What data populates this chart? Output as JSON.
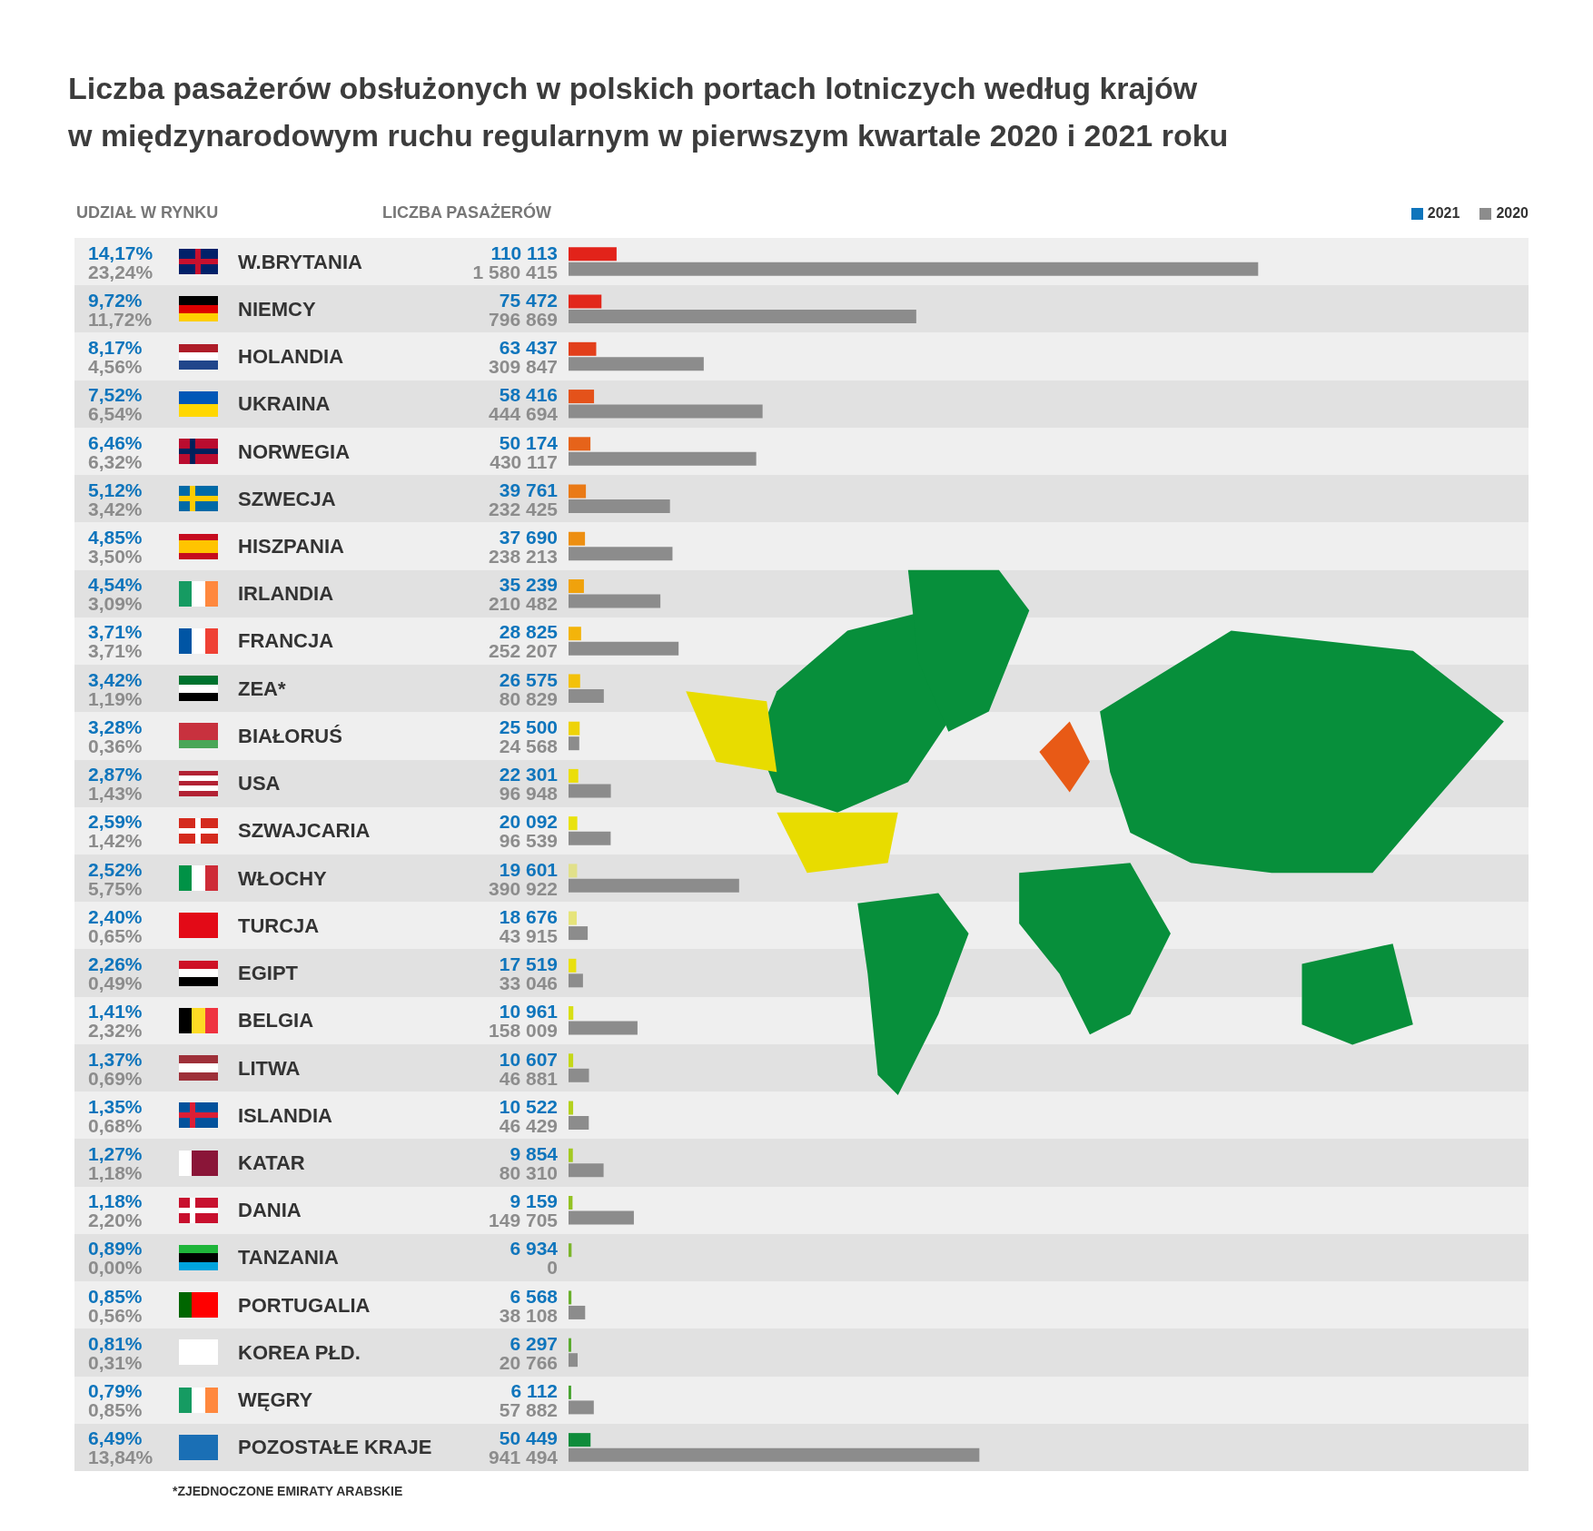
{
  "chart_data": {
    "type": "bar",
    "orientation": "horizontal",
    "title": "Liczba pasażerów obsłużonych w polskich portach lotniczych według krajów\nw międzynarodowym ruchu regularnym w pierwszym kwartale 2020 i 2021 roku",
    "xlabel": "LICZBA PASAŻERÓW",
    "categories": [
      "W.BRYTANIA",
      "NIEMCY",
      "HOLANDIA",
      "UKRAINA",
      "NORWEGIA",
      "SZWECJA",
      "HISZPANIA",
      "IRLANDIA",
      "FRANCJA",
      "ZEA*",
      "BIAŁORUŚ",
      "USA",
      "SZWAJCARIA",
      "WŁOCHY",
      "TURCJA",
      "EGIPT",
      "BELGIA",
      "LITWA",
      "ISLANDIA",
      "KATAR",
      "DANIA",
      "TANZANIA",
      "PORTUGALIA",
      "KOREA PŁD.",
      "WĘGRY",
      "POZOSTAŁE KRAJE"
    ],
    "xlim": [
      0,
      2200000
    ],
    "tick_labels": "y",
    "legend": "top right",
    "series": [
      {
        "name": "2021",
        "color": "#0f75bc",
        "values": [
          110113,
          75472,
          63437,
          58416,
          50174,
          39761,
          37690,
          35239,
          28825,
          26575,
          25500,
          22301,
          20092,
          19601,
          18676,
          17519,
          10961,
          10607,
          10522,
          9854,
          9159,
          6934,
          6568,
          6297,
          6112,
          50449
        ],
        "colors": [
          "#e2231a",
          "#e2271b",
          "#e23f1b",
          "#e4521a",
          "#e6631a",
          "#ea7a16",
          "#ed8f12",
          "#f0a20c",
          "#f3b40a",
          "#f3c10a",
          "#eed308",
          "#ebde0a",
          "#e9e20e",
          "#e1e08a",
          "#e6e47a",
          "#e9e00d",
          "#d8df14",
          "#c5d818",
          "#b4d11d",
          "#a3c920",
          "#93c222",
          "#7bb52a",
          "#6ab02c",
          "#5aab2e",
          "#48a431",
          "#0f8c3b"
        ],
        "value_labels": [
          "110 113",
          "75 472",
          "63 437",
          "58 416",
          "50 174",
          "39 761",
          "37 690",
          "35 239",
          "28 825",
          "26 575",
          "25 500",
          "22 301",
          "20 092",
          "19 601",
          "18 676",
          "17 519",
          "10 961",
          "10 607",
          "10 522",
          "9 854",
          "9 159",
          "6 934",
          "6 568",
          "6 297",
          "6 112",
          "50 449"
        ]
      },
      {
        "name": "2020",
        "color": "#8c8c8c",
        "values": [
          1580415,
          796869,
          309847,
          444694,
          430117,
          232425,
          238213,
          210482,
          252207,
          80829,
          24568,
          96948,
          96539,
          390922,
          43915,
          33046,
          158009,
          46881,
          46429,
          80310,
          149705,
          0,
          38108,
          20766,
          57882,
          941494
        ],
        "value_labels": [
          "1 580 415",
          "796 869",
          "309 847",
          "444 694",
          "430 117",
          "232 425",
          "238 213",
          "210 482",
          "252 207",
          "80 829",
          "24 568",
          "96 948",
          "96 539",
          "390 922",
          "43 915",
          "33 046",
          "158 009",
          "46 881",
          "46 429",
          "80 310",
          "149 705",
          "0",
          "38 108",
          "20 766",
          "57 882",
          "941 494"
        ]
      }
    ],
    "annotations": [
      "UDZIAŁ W RYNKU",
      "14,17%",
      "23,24%",
      "9,72%",
      "11,72%",
      "8,17%",
      "4,56%",
      "7,52%",
      "6,54%",
      "6,46%",
      "6,32%",
      "5,12%",
      "3,42%",
      "4,85%",
      "3,50%",
      "4,54%",
      "3,09%",
      "3,71%",
      "3,71%",
      "3,42%",
      "1,19%",
      "3,28%",
      "0,36%",
      "2,87%",
      "1,43%",
      "2,59%",
      "1,42%",
      "2,52%",
      "5,75%",
      "2,40%",
      "0,65%",
      "2,26%",
      "0,49%",
      "1,41%",
      "2,32%",
      "1,37%",
      "0,69%",
      "1,35%",
      "0,68%",
      "1,27%",
      "1,18%",
      "1,18%",
      "2,20%",
      "0,89%",
      "0,00%",
      "0,85%",
      "0,56%",
      "0,81%",
      "0,31%",
      "0,79%",
      "0,85%",
      "6,49%",
      "13,84%",
      "*ZJEDNOCZONE EMIRATY ARABSKIE"
    ]
  }
}
